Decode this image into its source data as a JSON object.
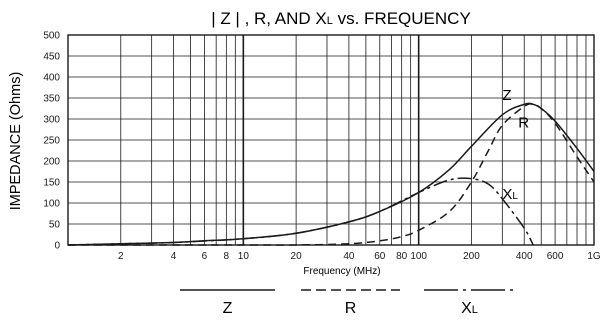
{
  "chart_data": {
    "type": "line",
    "title": "| Z | , R, AND Xₗ vs. FREQUENCY",
    "title_parts": {
      "pre": "| Z | , R, AND X",
      "sub": "L",
      "post": " vs. FREQUENCY"
    },
    "xlabel": "Frequency (MHz)",
    "ylabel": "IMPEDANCE (Ohms)",
    "x_scale": "log",
    "xlim": [
      1,
      1000
    ],
    "ylim": [
      0,
      500
    ],
    "y_ticks": [
      0,
      50,
      100,
      150,
      200,
      250,
      300,
      350,
      400,
      450,
      500
    ],
    "x_ticks": [
      {
        "value": 2,
        "label": "2"
      },
      {
        "value": 4,
        "label": "4"
      },
      {
        "value": 6,
        "label": "6"
      },
      {
        "value": 8,
        "label": "8"
      },
      {
        "value": 10,
        "label": "10"
      },
      {
        "value": 20,
        "label": "20"
      },
      {
        "value": 40,
        "label": "40"
      },
      {
        "value": 60,
        "label": "60"
      },
      {
        "value": 80,
        "label": "80"
      },
      {
        "value": 100,
        "label": "100"
      },
      {
        "value": 200,
        "label": "200"
      },
      {
        "value": 400,
        "label": "400"
      },
      {
        "value": 600,
        "label": "600"
      },
      {
        "value": 1000,
        "label": "1G"
      }
    ],
    "grid": true,
    "legend_position": "below",
    "series": [
      {
        "name": "Z",
        "style": "solid",
        "x": [
          1,
          2,
          4,
          6,
          10,
          20,
          40,
          60,
          100,
          150,
          200,
          300,
          400,
          450,
          500,
          600,
          800,
          1000
        ],
        "y": [
          0,
          3,
          6,
          10,
          15,
          28,
          55,
          80,
          125,
          180,
          235,
          310,
          335,
          335,
          325,
          295,
          230,
          175
        ]
      },
      {
        "name": "R",
        "style": "dashed",
        "x": [
          1,
          10,
          20,
          40,
          60,
          80,
          100,
          150,
          200,
          250,
          300,
          400,
          450,
          500,
          600,
          800,
          1000
        ],
        "y": [
          0,
          0,
          0,
          3,
          10,
          20,
          35,
          80,
          150,
          225,
          285,
          330,
          335,
          325,
          290,
          210,
          150
        ]
      },
      {
        "name": "XL",
        "style": "dashdot",
        "x": [
          1,
          2,
          4,
          10,
          20,
          40,
          60,
          100,
          150,
          200,
          250,
          300,
          400,
          450
        ],
        "y": [
          0,
          3,
          6,
          15,
          28,
          55,
          80,
          125,
          155,
          158,
          145,
          110,
          40,
          0
        ]
      }
    ],
    "curve_labels": [
      {
        "text": "Z",
        "sub": ""
      },
      {
        "text": "R",
        "sub": ""
      },
      {
        "text": "X",
        "sub": "L"
      }
    ],
    "legend": [
      {
        "label": "Z",
        "sub": "",
        "style": "solid"
      },
      {
        "label": "R",
        "sub": "",
        "style": "dashed"
      },
      {
        "label": "X",
        "sub": "L",
        "style": "dashdot"
      }
    ]
  }
}
